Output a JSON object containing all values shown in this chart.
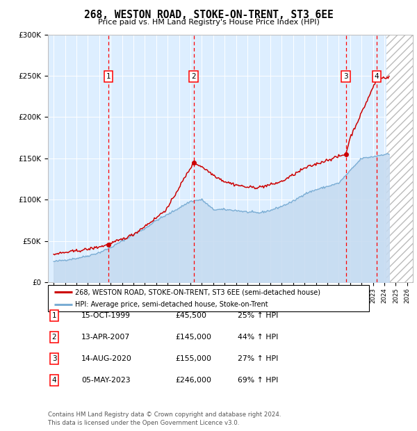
{
  "title": "268, WESTON ROAD, STOKE-ON-TRENT, ST3 6EE",
  "subtitle": "Price paid vs. HM Land Registry's House Price Index (HPI)",
  "transactions": [
    {
      "id": 1,
      "date": "15-OCT-1999",
      "year": 1999.79,
      "price": 45500,
      "pct": "25%"
    },
    {
      "id": 2,
      "date": "13-APR-2007",
      "year": 2007.28,
      "price": 145000,
      "pct": "44%"
    },
    {
      "id": 3,
      "date": "14-AUG-2020",
      "year": 2020.62,
      "price": 155000,
      "pct": "27%"
    },
    {
      "id": 4,
      "date": "05-MAY-2023",
      "year": 2023.34,
      "price": 246000,
      "pct": "69%"
    }
  ],
  "legend_line1": "268, WESTON ROAD, STOKE-ON-TRENT, ST3 6EE (semi-detached house)",
  "legend_line2": "HPI: Average price, semi-detached house, Stoke-on-Trent",
  "footer": "Contains HM Land Registry data © Crown copyright and database right 2024.\nThis data is licensed under the Open Government Licence v3.0.",
  "price_color": "#cc0000",
  "hpi_color": "#7aadd4",
  "hpi_fill_color": "#c5daf0",
  "bg_color": "#ddeeff",
  "ylim": [
    0,
    300000
  ],
  "xlim": [
    1994.5,
    2026.5
  ],
  "hpi_anchors_yr": [
    1995,
    1996,
    1997,
    1998,
    1999,
    2000,
    2001,
    2002,
    2003,
    2004,
    2005,
    2006,
    2007,
    2008,
    2009,
    2010,
    2011,
    2012,
    2013,
    2014,
    2015,
    2016,
    2017,
    2018,
    2019,
    2020,
    2021,
    2022,
    2023,
    2024,
    2024.4
  ],
  "hpi_anchors_val": [
    25000,
    27000,
    29000,
    32000,
    36000,
    42000,
    50000,
    58000,
    65000,
    75000,
    82000,
    90000,
    98000,
    100000,
    88000,
    88000,
    87000,
    85000,
    84000,
    87000,
    92000,
    98000,
    107000,
    112000,
    116000,
    120000,
    135000,
    150000,
    152000,
    155000,
    155000
  ],
  "price_anchors_yr": [
    1995,
    1996,
    1997,
    1998,
    1999,
    1999.79,
    2000,
    2001,
    2002,
    2003,
    2004,
    2005,
    2006,
    2007.28,
    2008,
    2009,
    2010,
    2011,
    2012,
    2013,
    2014,
    2015,
    2016,
    2017,
    2018,
    2019,
    2020.62,
    2021,
    2022,
    2023.34,
    2024,
    2024.4
  ],
  "price_anchors_val": [
    34000,
    36000,
    38000,
    40000,
    43000,
    45500,
    47000,
    52000,
    58000,
    68000,
    78000,
    90000,
    115000,
    145000,
    140000,
    130000,
    122000,
    118000,
    115000,
    115000,
    118000,
    122000,
    130000,
    138000,
    143000,
    148000,
    155000,
    175000,
    205000,
    246000,
    248000,
    248000
  ]
}
